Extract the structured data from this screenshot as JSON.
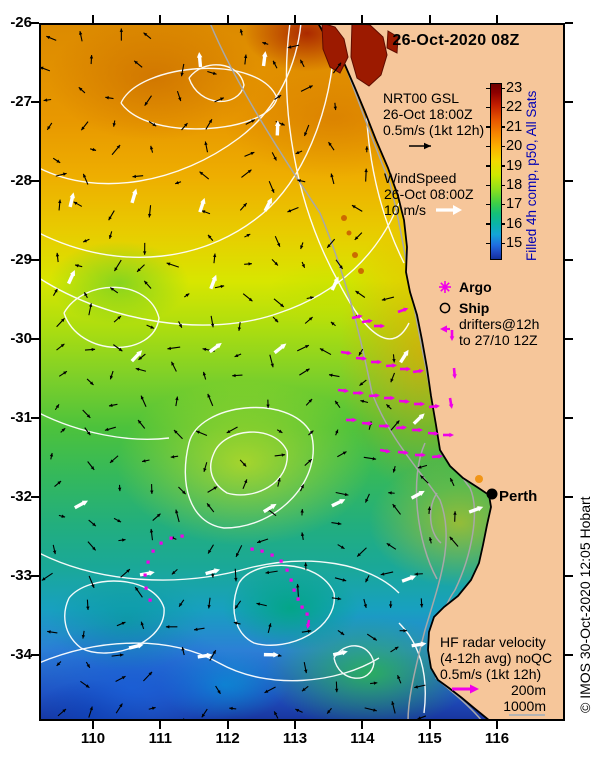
{
  "title": "26-Oct-2020 08Z",
  "copyright": "© IMOS 30-Oct-2020 12:05 Hobart",
  "city": {
    "name": "Perth"
  },
  "legend_gsl": {
    "line1": "NRT00 GSL",
    "line2": "26-Oct 18:00Z",
    "line3": "0.5m/s (1kt 12h)"
  },
  "legend_wind": {
    "line1": "WindSpeed",
    "line2": "26-Oct 08:00Z",
    "line3": "10 m/s"
  },
  "legend_obs": {
    "argo": "Argo",
    "ship": "Ship",
    "drifters_line1": "drifters@12h",
    "drifters_line2": "to 27/10 12Z"
  },
  "legend_hf": {
    "line1": "HF radar velocity",
    "line2": "(4-12h avg) noQC",
    "line3": "0.5m/s (1kt 12h)"
  },
  "legend_isobaths": {
    "label_200": "200m",
    "label_1000": "1000m"
  },
  "colorbar": {
    "label": "Filled 4h comp, p50, All Sats",
    "ticks": [
      23,
      22,
      21,
      20,
      19,
      18,
      17,
      16,
      15
    ],
    "label_color": "#0000b4"
  },
  "axes": {
    "x_ticks": [
      "110",
      "111",
      "112",
      "113",
      "114",
      "115",
      "116"
    ],
    "y_ticks": [
      "-26",
      "-27",
      "-28",
      "-29",
      "-30",
      "-31",
      "-32",
      "-33",
      "-34"
    ]
  },
  "colors": {
    "land": "#f6c69a",
    "magenta": "#f000e8",
    "isobath_grey": "#a8a8a8",
    "contour_white": "#ffffff",
    "shark_bay_warm": "#9c1a00"
  },
  "chart_data": {
    "type": "heatmap",
    "title": "26-Oct-2020 08Z",
    "x_ticks": [
      110,
      111,
      112,
      113,
      114,
      115,
      116
    ],
    "y_ticks": [
      -26,
      -27,
      -28,
      -29,
      -30,
      -31,
      -32,
      -33,
      -34
    ],
    "x_range": [
      109.2,
      117.0
    ],
    "y_range": [
      -34.84,
      -26.0
    ],
    "colorbar_label": "Filled 4h comp, p50, All Sats",
    "colorbar_range": [
      15,
      23
    ],
    "field": "sea surface temperature, warm (23) north grading to cool (15) south-west"
  },
  "observations": {
    "drifter_arrows": [
      [
        313,
        295,
        -12
      ],
      [
        323,
        299,
        -8
      ],
      [
        335,
        303,
        0
      ],
      [
        359,
        289,
        -20
      ],
      [
        302,
        329,
        8
      ],
      [
        317,
        335,
        4
      ],
      [
        332,
        339,
        0
      ],
      [
        347,
        343,
        -4
      ],
      [
        361,
        346,
        0
      ],
      [
        374,
        349,
        -8
      ],
      [
        299,
        367,
        6
      ],
      [
        314,
        370,
        0
      ],
      [
        330,
        373,
        -4
      ],
      [
        345,
        375,
        0
      ],
      [
        360,
        378,
        4
      ],
      [
        375,
        381,
        0
      ],
      [
        390,
        384,
        -6
      ],
      [
        307,
        397,
        0
      ],
      [
        323,
        400,
        4
      ],
      [
        340,
        403,
        0
      ],
      [
        357,
        405,
        -4
      ],
      [
        373,
        407,
        0
      ],
      [
        389,
        410,
        4
      ],
      [
        404,
        412,
        0
      ],
      [
        341,
        427,
        10
      ],
      [
        359,
        429,
        5
      ],
      [
        376,
        432,
        0
      ],
      [
        393,
        434,
        -5
      ],
      [
        413,
        307,
        90
      ],
      [
        415,
        345,
        85
      ],
      [
        411,
        375,
        80
      ]
    ],
    "drifter_trail": [
      [
        111,
        577
      ],
      [
        107,
        565
      ],
      [
        106,
        552
      ],
      [
        109,
        539
      ],
      [
        114,
        528
      ],
      [
        122,
        520
      ],
      [
        132,
        515
      ],
      [
        143,
        513
      ],
      [
        213,
        526
      ],
      [
        223,
        528
      ],
      [
        233,
        532
      ],
      [
        242,
        538
      ],
      [
        248,
        547
      ],
      [
        252,
        557
      ],
      [
        255,
        567
      ],
      [
        259,
        576
      ],
      [
        263,
        584
      ],
      [
        268,
        591
      ]
    ],
    "drifter_trail_end_arrow": [
      270,
      597,
      100
    ]
  }
}
